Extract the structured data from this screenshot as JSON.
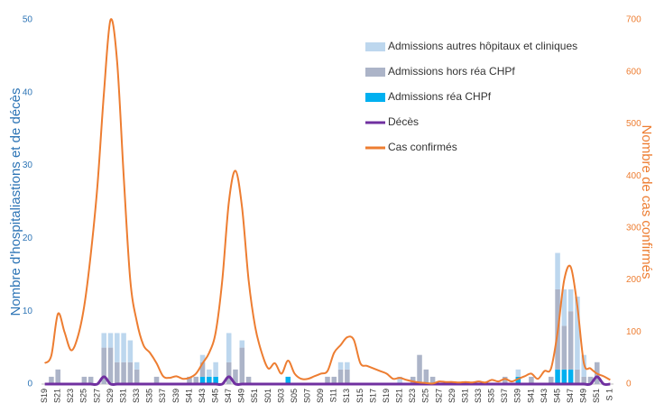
{
  "chart_data": {
    "type": "bar",
    "categories": [
      "S19",
      null,
      "S21",
      null,
      "S23",
      null,
      "S25",
      null,
      "S27",
      null,
      "S29",
      null,
      "S31",
      null,
      "S33",
      null,
      "S35",
      null,
      "S37",
      null,
      "S39",
      null,
      "S41",
      null,
      "S43",
      null,
      "S45",
      null,
      "S47",
      null,
      "S49",
      null,
      "S51",
      null,
      "S01",
      null,
      "S03",
      null,
      "S05",
      null,
      "S07",
      null,
      "S09",
      null,
      "S11",
      null,
      "S13",
      null,
      "S15",
      null,
      "S17",
      null,
      "S19",
      null,
      "S21",
      null,
      "S23",
      null,
      "S25",
      null,
      "S27",
      null,
      "S29",
      null,
      "S31",
      null,
      "S33",
      null,
      "S35",
      null,
      "S37",
      null,
      "S39",
      null,
      "S41",
      null,
      "S43",
      null,
      "S45",
      null,
      "S47",
      null,
      "S49",
      null,
      "S51",
      null,
      "S 1"
    ],
    "series": [
      {
        "name": "Admissions autres hôpitaux et cliniques",
        "color": "#bdd7ee",
        "kind": "bar",
        "values": [
          0,
          0,
          0,
          0,
          0,
          0,
          0,
          0,
          0,
          2,
          2,
          4,
          4,
          3,
          1,
          0,
          0,
          0,
          0,
          0,
          0,
          0,
          0,
          0,
          1,
          1,
          2,
          0,
          4,
          0,
          1,
          0,
          0,
          0,
          0,
          0,
          0,
          0,
          0,
          0,
          0,
          0,
          0,
          0,
          0,
          1,
          1,
          0,
          0,
          0,
          0,
          0,
          0,
          0,
          1,
          0,
          0,
          0,
          0,
          0,
          0,
          0,
          0,
          0,
          0,
          0,
          0,
          0,
          0,
          0,
          0,
          0,
          1,
          0,
          0,
          0,
          0,
          0,
          5,
          5,
          3,
          10,
          3,
          0,
          0,
          0,
          0
        ]
      },
      {
        "name": "Admissions hors réa CHPf",
        "color": "#acb4c8",
        "kind": "bar",
        "values": [
          0,
          1,
          2,
          0,
          0,
          0,
          1,
          1,
          0,
          5,
          5,
          3,
          3,
          3,
          2,
          0,
          0,
          1,
          0,
          0,
          0,
          0,
          1,
          1,
          2,
          0,
          0,
          0,
          3,
          2,
          5,
          1,
          0,
          0,
          0,
          0,
          0,
          0,
          0,
          0,
          0,
          0,
          0,
          1,
          1,
          2,
          2,
          0,
          0,
          0,
          0,
          0,
          0,
          0,
          0,
          0,
          1,
          4,
          2,
          1,
          0,
          0,
          0,
          0,
          0,
          0,
          0,
          0,
          0,
          0,
          1,
          0,
          0,
          0,
          1,
          0,
          0,
          1,
          11,
          6,
          8,
          2,
          1,
          1,
          3,
          0,
          0
        ]
      },
      {
        "name": "Admissions réa CHPf",
        "color": "#00b0f0",
        "kind": "bar",
        "values": [
          0,
          0,
          0,
          0,
          0,
          0,
          0,
          0,
          0,
          0,
          0,
          0,
          0,
          0,
          0,
          0,
          0,
          0,
          0,
          0,
          0,
          0,
          0,
          0,
          1,
          1,
          1,
          0,
          0,
          0,
          0,
          0,
          0,
          0,
          0,
          0,
          0,
          1,
          0,
          0,
          0,
          0,
          0,
          0,
          0,
          0,
          0,
          0,
          0,
          0,
          0,
          0,
          0,
          0,
          0,
          0,
          0,
          0,
          0,
          0,
          0,
          0,
          0,
          0,
          0,
          0,
          0,
          0,
          0,
          0,
          0,
          0,
          1,
          0,
          0,
          0,
          0,
          0,
          2,
          2,
          2,
          0,
          0,
          0,
          0,
          0,
          0
        ]
      },
      {
        "name": "Décès",
        "color": "#7030a0",
        "kind": "line",
        "values": [
          0,
          0,
          0,
          0,
          0,
          0,
          0,
          0,
          0,
          1,
          0,
          0,
          0,
          0,
          0,
          0,
          0,
          0,
          0,
          0,
          0,
          0,
          0,
          0,
          0,
          0,
          0,
          0,
          1,
          0,
          0,
          0,
          0,
          0,
          0,
          0,
          0,
          0,
          0,
          0,
          0,
          0,
          0,
          0,
          0,
          0,
          0,
          0,
          0,
          0,
          0,
          0,
          0,
          0,
          0,
          0,
          0,
          0,
          0,
          0,
          0,
          0,
          0,
          0,
          0,
          0,
          0,
          0,
          0,
          0,
          0,
          0,
          0,
          0,
          0,
          0,
          0,
          0,
          0,
          0,
          0,
          0,
          0,
          0,
          1,
          0,
          0
        ]
      },
      {
        "name": "Cas confirmés",
        "color": "#ed7d31",
        "kind": "line",
        "axis": "y2",
        "values": [
          40,
          55,
          135,
          100,
          65,
          90,
          150,
          250,
          380,
          560,
          700,
          620,
          400,
          200,
          120,
          75,
          60,
          40,
          15,
          12,
          15,
          10,
          12,
          20,
          40,
          60,
          100,
          200,
          350,
          410,
          340,
          200,
          110,
          60,
          30,
          40,
          20,
          45,
          20,
          10,
          10,
          15,
          20,
          25,
          60,
          75,
          90,
          85,
          40,
          35,
          30,
          25,
          20,
          10,
          12,
          8,
          5,
          3,
          2,
          1,
          5,
          4,
          4,
          3,
          4,
          3,
          5,
          3,
          8,
          5,
          10,
          5,
          10,
          15,
          20,
          10,
          25,
          30,
          100,
          200,
          225,
          150,
          40,
          30,
          20,
          15,
          8
        ]
      }
    ],
    "ylabel": "Nombre d'hospitaliastions et de décès",
    "y2label": "Nombre de cas confirmés",
    "ylim": [
      0,
      50
    ],
    "yticks": [
      0,
      10,
      20,
      30,
      40,
      50
    ],
    "y2lim": [
      0,
      700
    ],
    "y2ticks": [
      0,
      100,
      200,
      300,
      400,
      500,
      600,
      700
    ]
  }
}
